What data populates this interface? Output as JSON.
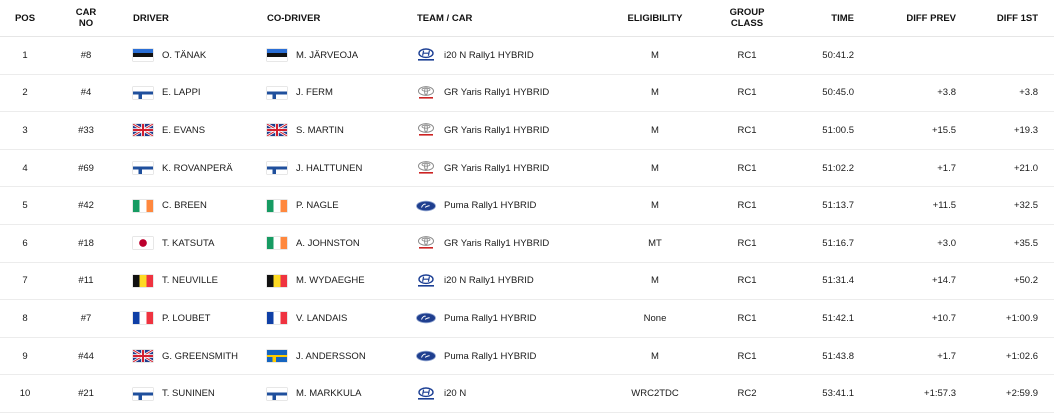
{
  "headers": {
    "pos": "POS",
    "car_no_line1": "CAR",
    "car_no_line2": "NO",
    "driver": "DRIVER",
    "co_driver": "CO-DRIVER",
    "team_car": "TEAM / CAR",
    "eligibility": "ELIGIBILITY",
    "group_class_line1": "GROUP",
    "group_class_line2": "CLASS",
    "time": "TIME",
    "diff_prev": "DIFF PREV",
    "diff_1st": "DIFF 1ST"
  },
  "rows": [
    {
      "pos": "1",
      "car_no": "#8",
      "driver": "O. TÄNAK",
      "driver_flag": "flag-estonia",
      "co_driver": "M. JÄRVEOJA",
      "co_driver_flag": "flag-estonia",
      "team_logo": "hyundai-logo",
      "car": "i20 N Rally1 HYBRID",
      "eligibility": "M",
      "group_class": "RC1",
      "time": "50:41.2",
      "diff_prev": "",
      "diff_1st": ""
    },
    {
      "pos": "2",
      "car_no": "#4",
      "driver": "E. LAPPI",
      "driver_flag": "flag-finland",
      "co_driver": "J. FERM",
      "co_driver_flag": "flag-finland",
      "team_logo": "toyota-logo",
      "car": "GR Yaris Rally1 HYBRID",
      "eligibility": "M",
      "group_class": "RC1",
      "time": "50:45.0",
      "diff_prev": "+3.8",
      "diff_1st": "+3.8"
    },
    {
      "pos": "3",
      "car_no": "#33",
      "driver": "E. EVANS",
      "driver_flag": "flag-uk",
      "co_driver": "S. MARTIN",
      "co_driver_flag": "flag-uk",
      "team_logo": "toyota-logo",
      "car": "GR Yaris Rally1 HYBRID",
      "eligibility": "M",
      "group_class": "RC1",
      "time": "51:00.5",
      "diff_prev": "+15.5",
      "diff_1st": "+19.3"
    },
    {
      "pos": "4",
      "car_no": "#69",
      "driver": "K. ROVANPERÄ",
      "driver_flag": "flag-finland",
      "co_driver": "J. HALTTUNEN",
      "co_driver_flag": "flag-finland",
      "team_logo": "toyota-logo",
      "car": "GR Yaris Rally1 HYBRID",
      "eligibility": "M",
      "group_class": "RC1",
      "time": "51:02.2",
      "diff_prev": "+1.7",
      "diff_1st": "+21.0"
    },
    {
      "pos": "5",
      "car_no": "#42",
      "driver": "C. BREEN",
      "driver_flag": "flag-ireland",
      "co_driver": "P. NAGLE",
      "co_driver_flag": "flag-ireland",
      "team_logo": "ford-logo",
      "car": "Puma Rally1 HYBRID",
      "eligibility": "M",
      "group_class": "RC1",
      "time": "51:13.7",
      "diff_prev": "+11.5",
      "diff_1st": "+32.5"
    },
    {
      "pos": "6",
      "car_no": "#18",
      "driver": "T. KATSUTA",
      "driver_flag": "flag-japan",
      "co_driver": "A. JOHNSTON",
      "co_driver_flag": "flag-ireland",
      "team_logo": "toyota-logo",
      "car": "GR Yaris Rally1 HYBRID",
      "eligibility": "MT",
      "group_class": "RC1",
      "time": "51:16.7",
      "diff_prev": "+3.0",
      "diff_1st": "+35.5"
    },
    {
      "pos": "7",
      "car_no": "#11",
      "driver": "T. NEUVILLE",
      "driver_flag": "flag-belgium",
      "co_driver": "M. WYDAEGHE",
      "co_driver_flag": "flag-belgium",
      "team_logo": "hyundai-logo",
      "car": "i20 N Rally1 HYBRID",
      "eligibility": "M",
      "group_class": "RC1",
      "time": "51:31.4",
      "diff_prev": "+14.7",
      "diff_1st": "+50.2"
    },
    {
      "pos": "8",
      "car_no": "#7",
      "driver": "P. LOUBET",
      "driver_flag": "flag-france",
      "co_driver": "V. LANDAIS",
      "co_driver_flag": "flag-france",
      "team_logo": "ford-logo",
      "car": "Puma Rally1 HYBRID",
      "eligibility": "None",
      "group_class": "RC1",
      "time": "51:42.1",
      "diff_prev": "+10.7",
      "diff_1st": "+1:00.9"
    },
    {
      "pos": "9",
      "car_no": "#44",
      "driver": "G. GREENSMITH",
      "driver_flag": "flag-uk",
      "co_driver": "J. ANDERSSON",
      "co_driver_flag": "flag-sweden",
      "team_logo": "ford-logo",
      "car": "Puma Rally1 HYBRID",
      "eligibility": "M",
      "group_class": "RC1",
      "time": "51:43.8",
      "diff_prev": "+1.7",
      "diff_1st": "+1:02.6"
    },
    {
      "pos": "10",
      "car_no": "#21",
      "driver": "T. SUNINEN",
      "driver_flag": "flag-finland",
      "co_driver": "M. MARKKULA",
      "co_driver_flag": "flag-finland",
      "team_logo": "hyundai-logo",
      "car": "i20 N",
      "eligibility": "WRC2TDC",
      "group_class": "RC2",
      "time": "53:41.1",
      "diff_prev": "+1:57.3",
      "diff_1st": "+2:59.9"
    }
  ]
}
